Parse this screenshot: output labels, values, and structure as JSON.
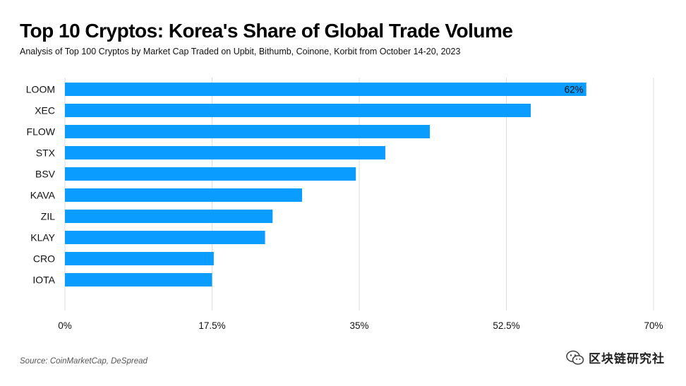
{
  "title": "Top 10 Cryptos: Korea's Share of Global Trade Volume",
  "subtitle": "Analysis of Top 100 Cryptos by Market Cap Traded on Upbit, Bithumb, Coinone, Korbit from October 14-20, 2023",
  "source": "Source: CoinMarketCap, DeSpread",
  "watermark": {
    "text": "区块链研究社",
    "icon": "wechat-icon"
  },
  "chart_data": {
    "type": "bar",
    "orientation": "horizontal",
    "categories": [
      "LOOM",
      "XEC",
      "FLOW",
      "STX",
      "BSV",
      "KAVA",
      "ZIL",
      "KLAY",
      "CRO",
      "IOTA"
    ],
    "values": [
      62,
      55.4,
      43.4,
      38.1,
      34.6,
      28.2,
      24.7,
      23.8,
      17.7,
      17.5
    ],
    "data_labels": [
      {
        "category": "LOOM",
        "text": "62%"
      }
    ],
    "x_ticks": [
      {
        "value": 0,
        "label": "0%"
      },
      {
        "value": 17.5,
        "label": "17.5%"
      },
      {
        "value": 35,
        "label": "35%"
      },
      {
        "value": 52.5,
        "label": "52.5%"
      },
      {
        "value": 70,
        "label": "70%"
      }
    ],
    "xlim": [
      0,
      70
    ],
    "xlabel": "",
    "ylabel": "",
    "grid": "vertical",
    "bar_color": "#0A9CFF",
    "grid_color": "#DDDDDD"
  }
}
